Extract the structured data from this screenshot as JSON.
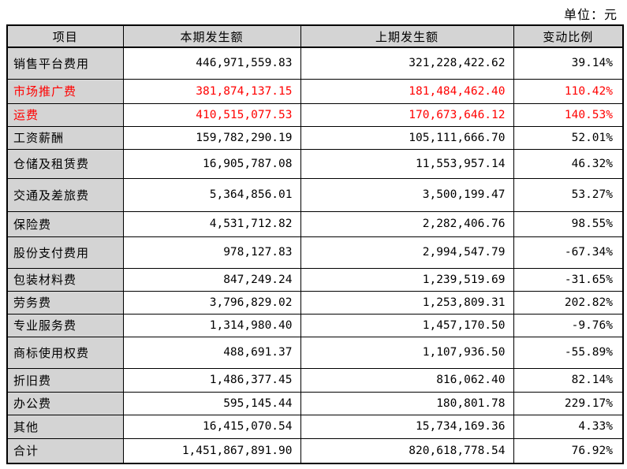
{
  "unit_label": "单位：元",
  "colors": {
    "highlight_red": "#ff0000",
    "header_background": "#d4d4d4",
    "border": "#000000"
  },
  "table": {
    "columns": [
      "项目",
      "本期发生额",
      "上期发生额",
      "变动比例"
    ],
    "rows": [
      {
        "label": "销售平台费用",
        "current": "446,971,559.83",
        "prior": "321,228,422.62",
        "change": "39.14%",
        "highlight": false
      },
      {
        "label": "市场推广费",
        "current": "381,874,137.15",
        "prior": "181,484,462.40",
        "change": "110.42%",
        "highlight": true
      },
      {
        "label": "运费",
        "current": "410,515,077.53",
        "prior": "170,673,646.12",
        "change": "140.53%",
        "highlight": true
      },
      {
        "label": "工资薪酬",
        "current": "159,782,290.19",
        "prior": "105,111,666.70",
        "change": "52.01%",
        "highlight": false
      },
      {
        "label": "仓储及租赁费",
        "current": "16,905,787.08",
        "prior": "11,553,957.14",
        "change": "46.32%",
        "highlight": false
      },
      {
        "label": "交通及差旅费",
        "current": "5,364,856.01",
        "prior": "3,500,199.47",
        "change": "53.27%",
        "highlight": false
      },
      {
        "label": "保险费",
        "current": "4,531,712.82",
        "prior": "2,282,406.76",
        "change": "98.55%",
        "highlight": false
      },
      {
        "label": "股份支付费用",
        "current": "978,127.83",
        "prior": "2,994,547.79",
        "change": "-67.34%",
        "highlight": false
      },
      {
        "label": "包装材料费",
        "current": "847,249.24",
        "prior": "1,239,519.69",
        "change": "-31.65%",
        "highlight": false
      },
      {
        "label": "劳务费",
        "current": "3,796,829.02",
        "prior": "1,253,809.31",
        "change": "202.82%",
        "highlight": false
      },
      {
        "label": "专业服务费",
        "current": "1,314,980.40",
        "prior": "1,457,170.50",
        "change": "-9.76%",
        "highlight": false
      },
      {
        "label": "商标使用权费",
        "current": "488,691.37",
        "prior": "1,107,936.50",
        "change": "-55.89%",
        "highlight": false
      },
      {
        "label": "折旧费",
        "current": "1,486,377.45",
        "prior": "816,062.40",
        "change": "82.14%",
        "highlight": false
      },
      {
        "label": "办公费",
        "current": "595,145.44",
        "prior": "180,801.78",
        "change": "229.17%",
        "highlight": false
      },
      {
        "label": "其他",
        "current": "16,415,070.54",
        "prior": "15,734,169.36",
        "change": "4.33%",
        "highlight": false
      },
      {
        "label": "合计",
        "current": "1,451,867,891.90",
        "prior": "820,618,778.54",
        "change": "76.92%",
        "highlight": false
      }
    ]
  }
}
